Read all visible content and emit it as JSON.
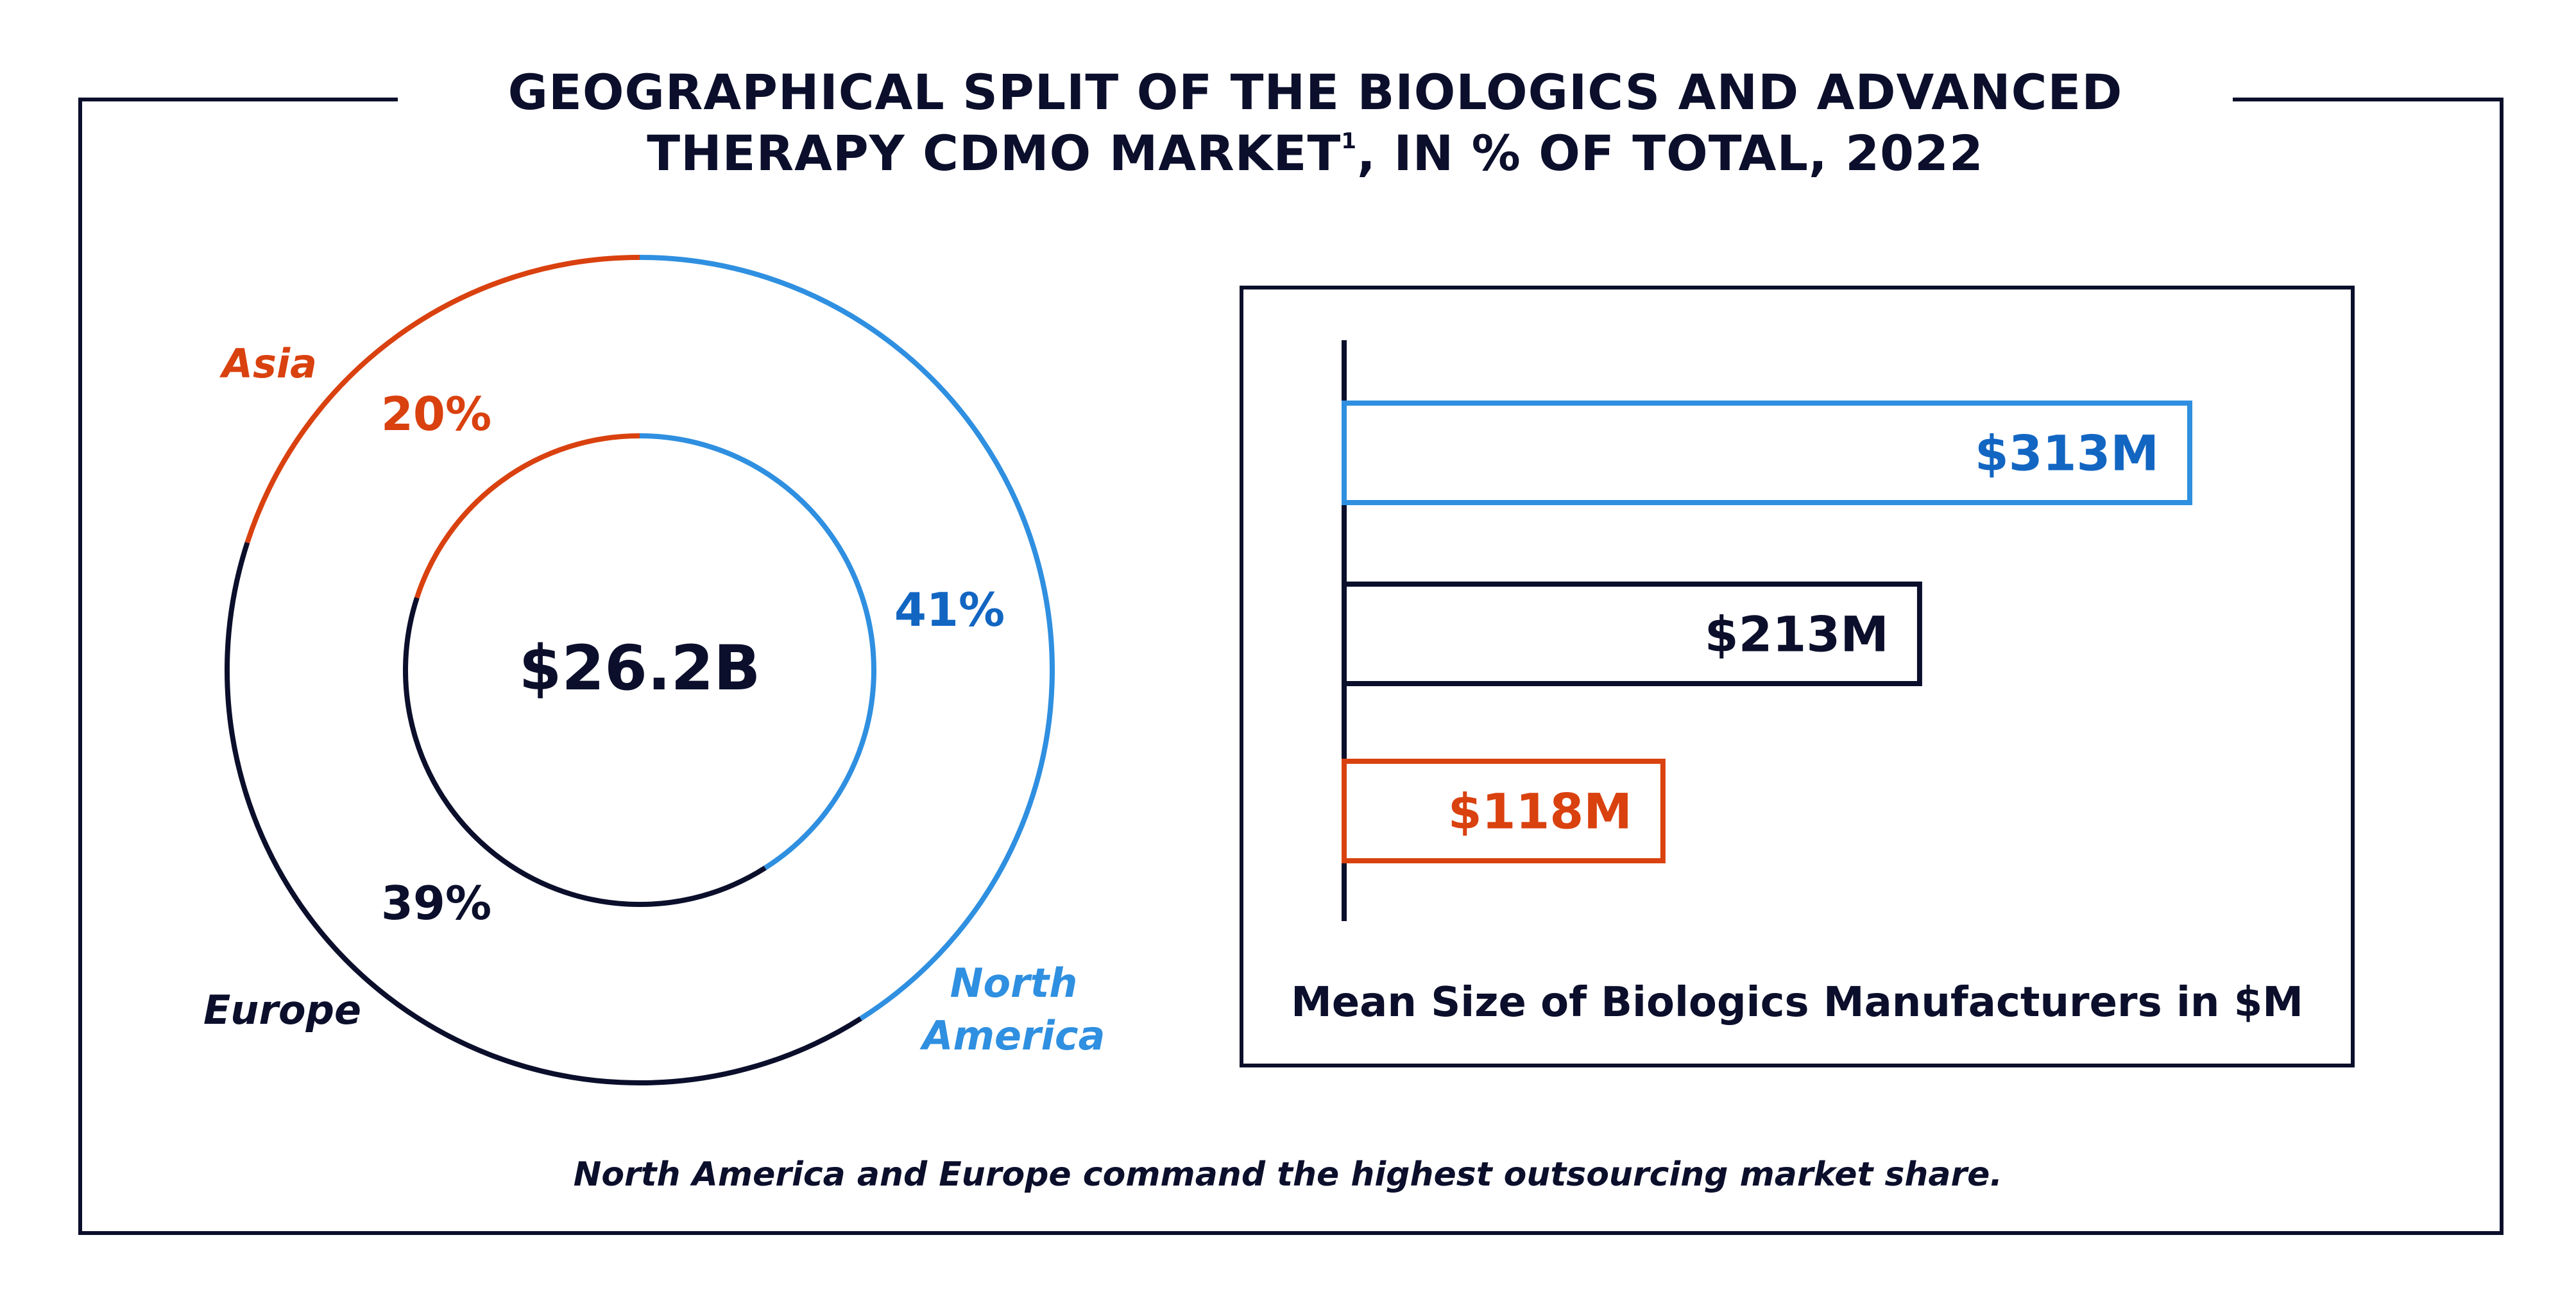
{
  "header": {
    "title_line1": "GEOGRAPHICAL SPLIT OF THE BIOLOGICS AND ADVANCED",
    "title_line2": "THERAPY CDMO MARKET",
    "title_sup": "1",
    "title_line2_suffix": ", IN % OF TOTAL, 2022"
  },
  "caption": "North America and Europe command the highest outsourcing market share.",
  "colors": {
    "navy": "#0b0f2b",
    "blue": "#2f8fe0",
    "blue_text": "#1266c2",
    "red": "#d9410f"
  },
  "chart_data": [
    {
      "type": "pie",
      "center_label": "$26.2B",
      "slices": [
        {
          "label": "North America",
          "label_lines": [
            "North",
            "America"
          ],
          "value": 41,
          "value_label": "41%",
          "color": "#2f8fe0"
        },
        {
          "label": "Europe",
          "label_lines": [
            "Europe"
          ],
          "value": 39,
          "value_label": "39%",
          "color": "#0b0f2b"
        },
        {
          "label": "Asia",
          "label_lines": [
            "Asia"
          ],
          "value": 20,
          "value_label": "20%",
          "color": "#d9410f"
        }
      ]
    },
    {
      "type": "bar",
      "orientation": "horizontal",
      "title": "Mean Size of Biologics Manufacturers in $M",
      "values": [
        313,
        213,
        118
      ],
      "value_labels": [
        "$313M",
        "$213M",
        "$118M"
      ],
      "colors": [
        "#2f8fe0",
        "#0b0f2b",
        "#d9410f"
      ]
    }
  ]
}
